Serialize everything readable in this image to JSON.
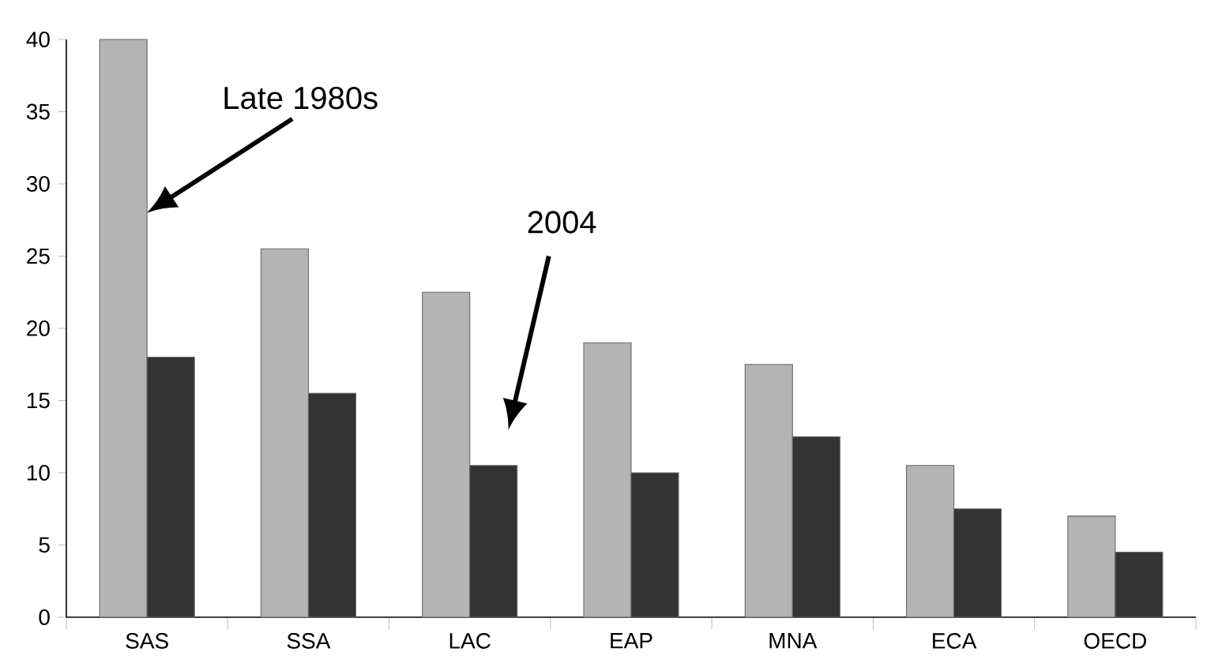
{
  "chart_data": {
    "type": "bar",
    "categories": [
      "SAS",
      "SSA",
      "LAC",
      "EAP",
      "MNA",
      "ECA",
      "OECD"
    ],
    "series": [
      {
        "color": "#b4b4b4",
        "values": [
          40,
          25.5,
          22.5,
          19,
          17.5,
          10.5,
          7
        ]
      },
      {
        "color": "#333333",
        "values": [
          18,
          15.5,
          10.5,
          10,
          12.5,
          7.5,
          4.5
        ]
      }
    ],
    "ylim": [
      0,
      40
    ],
    "yticks": [
      0,
      5,
      10,
      15,
      20,
      25,
      30,
      35,
      40
    ],
    "annotations": [
      "Late 1980s",
      "2004"
    ]
  }
}
